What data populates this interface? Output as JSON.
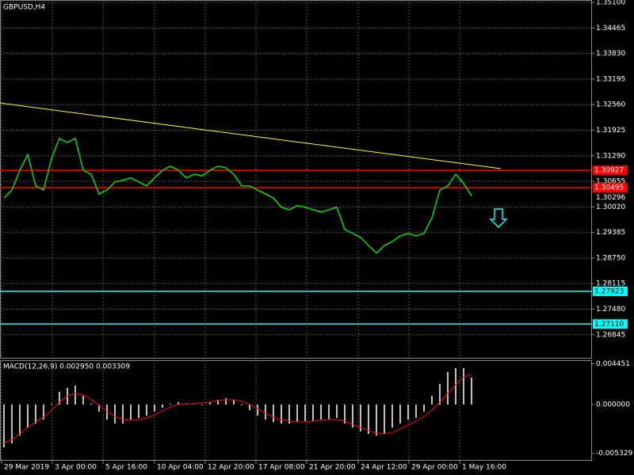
{
  "chart_data": [
    {
      "type": "line",
      "title": "GBPUSD,H4",
      "color": "#00e000",
      "values": [
        1.3024,
        1.3044,
        1.3093,
        1.3132,
        1.3054,
        1.3044,
        1.3123,
        1.3172,
        1.3162,
        1.3172,
        1.3093,
        1.3083,
        1.3034,
        1.3044,
        1.3064,
        1.3068,
        1.3074,
        1.3064,
        1.3054,
        1.3074,
        1.3093,
        1.3103,
        1.3093,
        1.3074,
        1.3083,
        1.3079,
        1.3093,
        1.3103,
        1.3099,
        1.3083,
        1.3054,
        1.3054,
        1.3044,
        1.3034,
        1.3024,
        1.3001,
        1.2995,
        1.3005,
        1.3001,
        1.2995,
        1.2989,
        1.2995,
        1.3001,
        1.2946,
        1.2936,
        1.2926,
        1.2906,
        1.2887,
        1.2906,
        1.2916,
        1.293,
        1.2936,
        1.293,
        1.2936,
        1.2975,
        1.3044,
        1.3054,
        1.3083,
        1.306,
        1.30296
      ],
      "xlim": [
        -0.5,
        74.1
      ],
      "xticks": [
        {
          "value": -0.3,
          "label": "29 Mar 2019"
        },
        {
          "value": 6.1,
          "label": "3 Apr 00:00"
        },
        {
          "value": 12.5,
          "label": "5 Apr 16:00"
        },
        {
          "value": 19,
          "label": "10 Apr 04:00"
        },
        {
          "value": 25.4,
          "label": "12 Apr 20:00"
        },
        {
          "value": 31.8,
          "label": "17 Apr 08:00"
        },
        {
          "value": 38.2,
          "label": "21 Apr 20:00"
        },
        {
          "value": 44.7,
          "label": "24 Apr 12:00"
        },
        {
          "value": 51.1,
          "label": "29 Apr 00:00"
        },
        {
          "value": 57.5,
          "label": "1 May 16:00"
        }
      ],
      "ylim": [
        1.2627,
        1.3516
      ],
      "yticks": [
        {
          "value": 1.351,
          "label": "1.35100"
        },
        1.34465,
        {
          "value": 1.3383,
          "label": "1.33830"
        },
        1.33195,
        {
          "value": 1.3256,
          "label": "1.32560"
        },
        1.31925,
        {
          "value": 1.3129,
          "label": "1.31290"
        },
        1.30655,
        {
          "value": 1.3002,
          "label": "1.30020"
        },
        1.29385,
        {
          "value": 1.2875,
          "label": "1.28750"
        },
        1.28115,
        {
          "value": 1.2748,
          "label": "1.27480"
        },
        1.26845
      ],
      "grid": true,
      "levels": [
        {
          "value": 1.30927,
          "color": "#ff0000"
        },
        {
          "value": 1.30495,
          "color": "#ff0000"
        },
        {
          "value": 1.27923,
          "color": "#00ffff"
        },
        {
          "value": 1.2711,
          "label": "1.27110",
          "color": "#00ffff"
        }
      ],
      "last_price": 1.30296,
      "trendline": {
        "start": [
          -0.5,
          1.326
        ],
        "end": [
          62.7,
          1.3097
        ],
        "color": "#ffff00"
      }
    },
    {
      "type": "macd",
      "title": "MACD(12,26,9) 0.002950 0.003309",
      "color": "#c0c0c0",
      "values": [
        -0.004671,
        -0.004239,
        -0.003374,
        -0.002509,
        -0.002076,
        -0.001644,
        8.7e-05,
        0.001384,
        0.001817,
        0.002076,
        0.000952,
        8.7e-05,
        -0.000779,
        -0.001644,
        -0.002076,
        -0.002076,
        -0.001644,
        -0.001471,
        -0.001211,
        -0.000779,
        -0.000346,
        8.7e-05,
        0.00026,
        8.7e-05,
        8.7e-05,
        -8.7e-05,
        0.00026,
        0.000519,
        0.000692,
        0.000519,
        -8.7e-05,
        -0.000606,
        -0.001211,
        -0.001644,
        -0.001903,
        -0.002076,
        -0.002076,
        -0.001903,
        -0.001817,
        -0.001817,
        -0.001644,
        -0.001644,
        -0.001471,
        -0.002076,
        -0.002509,
        -0.002941,
        -0.003201,
        -0.003374,
        -0.003201,
        -0.002509,
        -0.002076,
        -0.001644,
        -0.001471,
        -0.000779,
        0.000952,
        0.002249,
        0.003547,
        0.003979,
        0.003979,
        0.00295
      ],
      "signal": {
        "color": "#ff0000",
        "values": [
          -0.00424,
          -0.00381,
          -0.0032,
          -0.00251,
          -0.0019,
          -0.00138,
          -0.00061,
          0.00026,
          0.00095,
          0.00121,
          0.00104,
          0.00052,
          -9e-05,
          -0.00078,
          -0.0013,
          -0.00164,
          -0.00173,
          -0.00164,
          -0.00147,
          -0.00112,
          -0.00069,
          -0.00026,
          0,
          9e-05,
          9e-05,
          0.00017,
          0.00026,
          0.00043,
          0.00052,
          0.00052,
          0.00035,
          0,
          -0.00043,
          -0.00095,
          -0.00138,
          -0.00164,
          -0.00182,
          -0.0019,
          -0.0019,
          -0.00182,
          -0.00173,
          -0.00164,
          -0.00164,
          -0.00182,
          -0.00216,
          -0.00251,
          -0.00285,
          -0.00311,
          -0.0032,
          -0.00303,
          -0.00268,
          -0.00225,
          -0.00182,
          -0.0013,
          -0.00061,
          0.00026,
          0.00121,
          0.00216,
          0.00303,
          0.003309
        ]
      },
      "xlim": [
        -0.5,
        74.1
      ],
      "ylim": [
        -0.00614,
        0.00484
      ],
      "yticks": [
        0.004451,
        {
          "value": 0,
          "label": "0.000000"
        },
        -0.005329
      ]
    }
  ]
}
